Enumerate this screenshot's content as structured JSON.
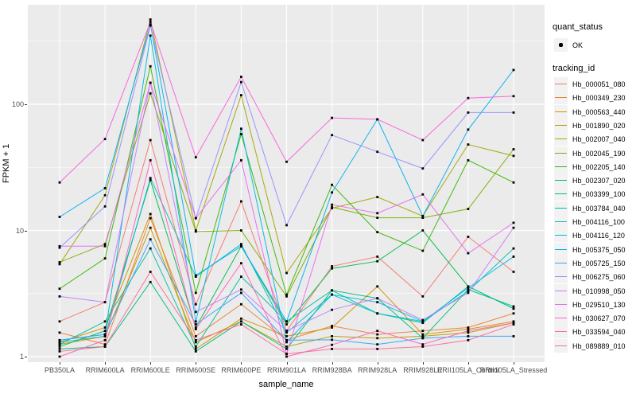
{
  "chart_data": {
    "type": "line",
    "title": "",
    "xlabel": "sample_name",
    "ylabel": "FPKM + 1",
    "y_scale": "log10",
    "y_ticks": [
      1,
      10,
      100
    ],
    "y_minor_ticks_log10": [
      0.5,
      1.5,
      2.5
    ],
    "ylim": [
      0.9,
      600
    ],
    "grid": "on",
    "legend_position": "right",
    "point_color": "#000000",
    "categories": [
      "PB350LA",
      "RRIM600LA",
      "RRIM600LE",
      "RRIM600SE",
      "RRIM600PE",
      "RRIM901LA",
      "RRIM928BA",
      "RRIM928LA",
      "RRIM928LE",
      "RRII105LA_Control",
      "RRII105LA_Stressed"
    ],
    "series": [
      {
        "name": "Hb_000051_080",
        "color": "#F8766D",
        "values": [
          1.9,
          2.7,
          52,
          2.6,
          17,
          1.6,
          5.2,
          6.2,
          3.0,
          8.9,
          4.7
        ]
      },
      {
        "name": "Hb_000349_230",
        "color": "#EA8331",
        "values": [
          1.55,
          1.25,
          12.5,
          1.45,
          2.6,
          1.35,
          1.75,
          1.5,
          1.6,
          1.7,
          2.2
        ]
      },
      {
        "name": "Hb_000563_440",
        "color": "#D89000",
        "values": [
          1.3,
          1.7,
          13.5,
          1.15,
          2.0,
          1.45,
          1.7,
          3.6,
          1.5,
          1.65,
          1.9
        ]
      },
      {
        "name": "Hb_001890_020",
        "color": "#C09B00",
        "values": [
          1.25,
          1.45,
          10.5,
          1.3,
          1.9,
          1.2,
          1.45,
          1.4,
          1.45,
          1.55,
          1.85
        ]
      },
      {
        "name": "Hb_002007_040",
        "color": "#A3A500",
        "values": [
          5.4,
          19,
          470,
          10,
          118,
          4.6,
          15,
          18.4,
          13,
          48,
          39
        ]
      },
      {
        "name": "Hb_002045_190",
        "color": "#7CAE00",
        "values": [
          5.6,
          7.8,
          122,
          9.8,
          10,
          3.0,
          15.3,
          12.6,
          12.6,
          14.8,
          44
        ]
      },
      {
        "name": "Hb_002205_140",
        "color": "#39B600",
        "values": [
          3.45,
          6.0,
          200,
          3.2,
          58,
          3.1,
          23,
          9.7,
          6.9,
          36,
          24
        ]
      },
      {
        "name": "Hb_002307_020",
        "color": "#00BB4E",
        "values": [
          1.2,
          1.6,
          25,
          1.7,
          7.5,
          1.8,
          5.0,
          5.7,
          10,
          3.6,
          2.4
        ]
      },
      {
        "name": "Hb_003399_100",
        "color": "#00BF7D",
        "values": [
          1.15,
          1.2,
          3.9,
          1.1,
          1.9,
          1.15,
          3.35,
          2.9,
          1.4,
          3.4,
          2.5
        ]
      },
      {
        "name": "Hb_003784_040",
        "color": "#00C1A3",
        "values": [
          1.25,
          1.9,
          7.2,
          1.2,
          4.3,
          1.9,
          3.35,
          2.2,
          1.85,
          3.6,
          2.4
        ]
      },
      {
        "name": "Hb_004116_100",
        "color": "#00BFC4",
        "values": [
          1.3,
          1.45,
          26,
          4.3,
          7.8,
          1.55,
          3.1,
          2.2,
          1.9,
          3.3,
          7.2
        ]
      },
      {
        "name": "Hb_004116_120",
        "color": "#00BAE0",
        "values": [
          1.35,
          1.5,
          350,
          1.9,
          64,
          1.3,
          3.1,
          2.7,
          1.9,
          3.5,
          6.2
        ]
      },
      {
        "name": "Hb_005375_050",
        "color": "#00B0F6",
        "values": [
          12.8,
          21.6,
          430,
          4.4,
          7.5,
          1.9,
          20,
          76,
          13,
          63,
          187
        ]
      },
      {
        "name": "Hb_005725_150",
        "color": "#35A2FF",
        "values": [
          1.35,
          1.5,
          8.5,
          1.8,
          3.2,
          1.35,
          1.36,
          1.25,
          1.4,
          1.45,
          1.45
        ]
      },
      {
        "name": "Hb_006275_060",
        "color": "#9590FF",
        "values": [
          7.3,
          15.5,
          420,
          12.5,
          150,
          11,
          57,
          42,
          31,
          86,
          86
        ]
      },
      {
        "name": "Hb_010998_050",
        "color": "#C77CFF",
        "values": [
          3.0,
          2.7,
          148,
          2.26,
          3.4,
          1.6,
          2.35,
          2.9,
          1.95,
          3.2,
          10.5
        ]
      },
      {
        "name": "Hb_029510_130",
        "color": "#E76BF3",
        "values": [
          7.5,
          7.5,
          148,
          12.5,
          36,
          1.05,
          16,
          13.7,
          19.3,
          6.6,
          11.5
        ]
      },
      {
        "name": "Hb_030627_070",
        "color": "#FA62DB",
        "values": [
          24,
          53,
          450,
          38,
          165,
          35,
          78,
          76,
          52,
          112,
          116
        ]
      },
      {
        "name": "Hb_033594_040",
        "color": "#FF62BC",
        "values": [
          1.0,
          1.35,
          36,
          1.65,
          5.5,
          1.0,
          1.24,
          1.6,
          1.25,
          1.6,
          1.85
        ]
      },
      {
        "name": "Hb_089889_010",
        "color": "#FF6A98",
        "values": [
          1.1,
          1.2,
          4.7,
          1.35,
          1.8,
          1.05,
          1.15,
          1.15,
          1.2,
          1.35,
          1.8
        ]
      }
    ]
  },
  "legend": {
    "quant_status_title": "quant_status",
    "quant_status_items": [
      {
        "label": "OK"
      }
    ],
    "tracking_title": "tracking_id"
  },
  "panel": {
    "background": "#EBEBEB",
    "gridline_color": "#FFFFFF"
  }
}
